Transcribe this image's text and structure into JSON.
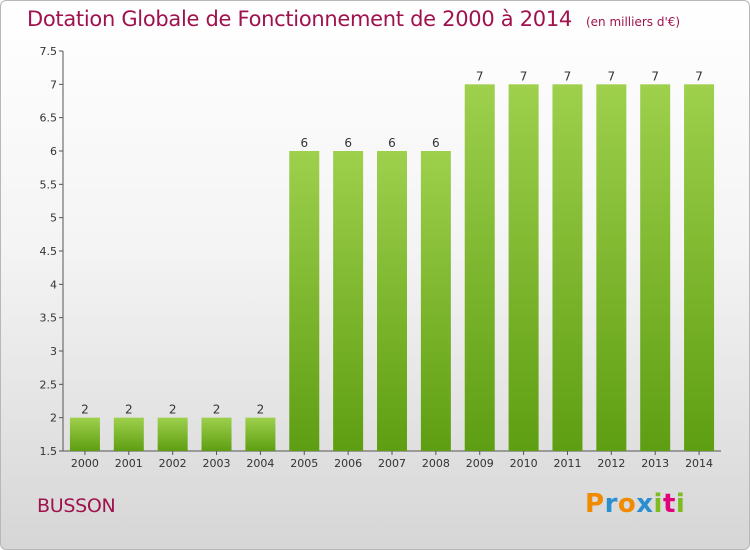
{
  "title": "Dotation Globale de Fonctionnement de 2000 à 2014",
  "unit_note": "(en milliers d'€)",
  "commune": "BUSSON",
  "logo_text": "Proxiti",
  "colors": {
    "title": "#a0124e",
    "bar_light": "#9ed04c",
    "bar_dark": "#5e9e12"
  },
  "chart_data": {
    "type": "bar",
    "title": "Dotation Globale de Fonctionnement de 2000 à 2014",
    "ylabel": "(en milliers d'€)",
    "xlabel": "",
    "categories": [
      "2000",
      "2001",
      "2002",
      "2003",
      "2004",
      "2005",
      "2006",
      "2007",
      "2008",
      "2009",
      "2010",
      "2011",
      "2012",
      "2013",
      "2014"
    ],
    "values": [
      2,
      2,
      2,
      2,
      2,
      6,
      6,
      6,
      6,
      7,
      7,
      7,
      7,
      7,
      7
    ],
    "ylim": [
      1.5,
      7.5
    ],
    "yticks": [
      1.5,
      2,
      2.5,
      3,
      3.5,
      4,
      4.5,
      5,
      5.5,
      6,
      6.5,
      7,
      7.5
    ],
    "grid": false,
    "data_labels": true
  }
}
